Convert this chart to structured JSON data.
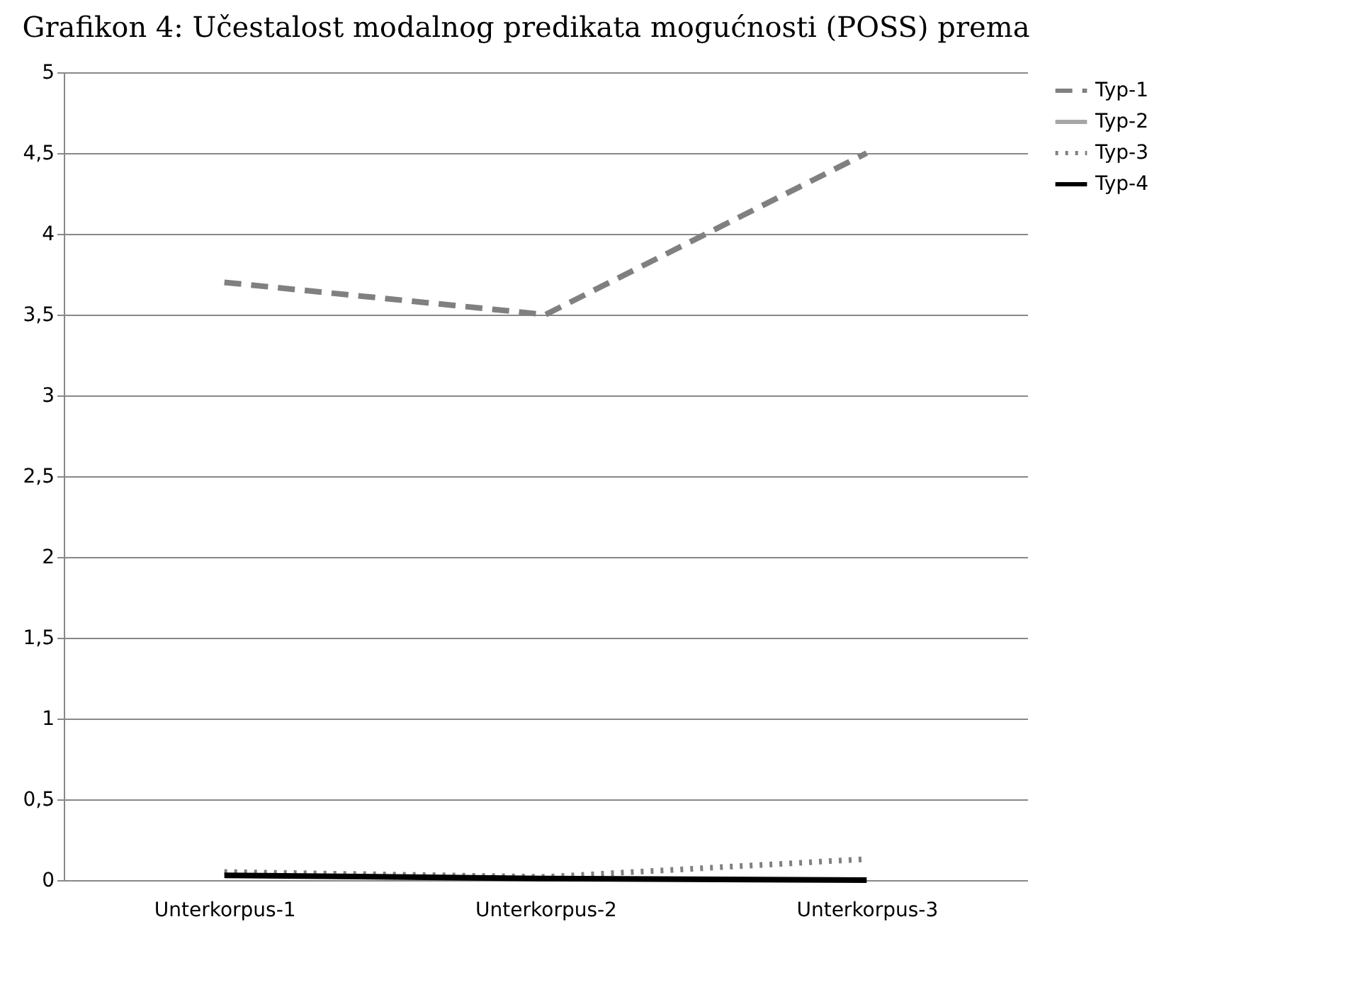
{
  "chart_data": {
    "type": "line",
    "title": "Grafikon 4: Učestalost modalnog predikata mogućnosti (POSS) prema",
    "categories": [
      "Unterkorpus-1",
      "Unterkorpus-2",
      "Unterkorpus-3"
    ],
    "series": [
      {
        "name": "Typ-1",
        "color": "#808080",
        "line_style": "dashed",
        "values": [
          3.7,
          3.5,
          4.5
        ]
      },
      {
        "name": "Typ-2",
        "color": "#a6a6a6",
        "line_style": "solid",
        "values": [
          null,
          null,
          null
        ]
      },
      {
        "name": "Typ-3",
        "color": "#808080",
        "line_style": "dotted",
        "values": [
          0.05,
          0.02,
          0.13
        ]
      },
      {
        "name": "Typ-4",
        "color": "#000000",
        "line_style": "solid",
        "values": [
          0.03,
          0.01,
          0.0
        ]
      }
    ],
    "ylim": [
      0,
      5
    ],
    "yticks": [
      0,
      {
        "value": 0.5,
        "label": "0,5"
      },
      1,
      {
        "value": 1.5,
        "label": "1,5"
      },
      2,
      {
        "value": 2.5,
        "label": "2,5"
      },
      3,
      {
        "value": 3.5,
        "label": "3,5"
      },
      4,
      {
        "value": 4.5,
        "label": "4,5"
      },
      5
    ],
    "grid": "y",
    "legend": "right",
    "marker": "none"
  }
}
